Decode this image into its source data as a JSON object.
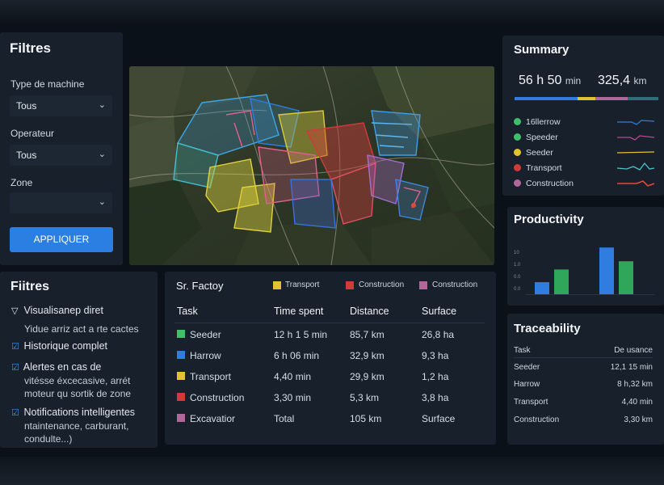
{
  "filters_panel": {
    "title": "Filtres",
    "machine_type_label": "Type de machine",
    "machine_type_value": "Tous",
    "operator_label": "Operateur",
    "operator_value": "Tous",
    "zone_label": "Zone",
    "zone_value": "",
    "apply_button": "APPLIQUER"
  },
  "features_panel": {
    "title": "Fiitres",
    "items": [
      {
        "icon": "triangle-down-icon",
        "title": "Visualisanep diret",
        "sub1": "Yidue arriz act a rte cactes",
        "sub2": ""
      },
      {
        "icon": "checkbox-icon",
        "title": "Historique complet",
        "sub1": "",
        "sub2": ""
      },
      {
        "icon": "checkbox-icon",
        "title": "Alertes en cas de",
        "sub1": "vitésse éxcecasive, arrét",
        "sub2": "moteur qu sortik de zone"
      },
      {
        "icon": "checkbox-icon",
        "title": "Notifications intelligentes",
        "sub1": "ntaintenance, carburant,",
        "sub2": "condulte...)"
      }
    ]
  },
  "table_panel": {
    "title": "Sr. Factoy",
    "legend": [
      {
        "label": "Transport",
        "color": "#e3c232"
      },
      {
        "label": "Construction",
        "color": "#d23a3a"
      },
      {
        "label": "Construction",
        "color": "#b0679a"
      }
    ],
    "headers": [
      "Task",
      "Time spent",
      "Distance",
      "Surface"
    ],
    "rows": [
      {
        "task": "Seeder",
        "color": "#3fbf6a",
        "time": "12 h 1 5 min",
        "distance": "85,7 km",
        "surface": "26,8 ha"
      },
      {
        "task": "Harrow",
        "color": "#2f7de0",
        "time": "6 h 06 min",
        "distance": "32,9 km",
        "surface": "9,3 ha"
      },
      {
        "task": "Transport",
        "color": "#e3c232",
        "time": "4,40 min",
        "distance": "29,9 km",
        "surface": "1,2 ha"
      },
      {
        "task": "Construction",
        "color": "#d23a3a",
        "time": "3,30 min",
        "distance": "5,3 km",
        "surface": "3,8 ha"
      },
      {
        "task": "Excavatior",
        "color": "#b0679a",
        "time": "Total",
        "distance": "105 km",
        "surface": "Surface"
      }
    ]
  },
  "summary_panel": {
    "title": "Summary",
    "duration": "56 h 50",
    "duration_unit": "min",
    "distance": "325,4",
    "distance_unit": "km",
    "legend": [
      {
        "label": "16llerrow",
        "color": "#3fbf6a",
        "spark": "#2f7de0"
      },
      {
        "label": "Speeder",
        "color": "#3fbf6a",
        "spark": "#c0478f"
      },
      {
        "label": "Seeder",
        "color": "#e3c232",
        "spark": "#e3c232"
      },
      {
        "label": "Transport",
        "color": "#d23a3a",
        "spark": "#4cc3c8"
      },
      {
        "label": "Construction",
        "color": "#b0679a",
        "spark": "#e04a3a"
      }
    ]
  },
  "productivity_panel": {
    "title": "Productivity",
    "y_ticks": [
      "10",
      "1.0",
      "0.0",
      "0.0"
    ]
  },
  "traceability_panel": {
    "title": "Traceability",
    "header": [
      "Task",
      "De usance"
    ],
    "rows": [
      {
        "task": "Seeder",
        "value": "12,1 15 min"
      },
      {
        "task": "Harrow",
        "value": "8 h,32 km"
      },
      {
        "task": "Transport",
        "value": "4,40 min"
      },
      {
        "task": "Construction",
        "value": "3,30 km"
      }
    ]
  },
  "chart_data": {
    "type": "bar",
    "categories": [
      "1",
      "2",
      "3",
      "4"
    ],
    "series": [
      {
        "values": [
          0.22,
          0.45,
          0,
          0
        ],
        "color": "#2f7de0"
      },
      {
        "values": [
          0,
          0.45,
          0,
          0.6
        ],
        "color": "#2fa65a"
      }
    ],
    "bars": [
      {
        "value": 0.22,
        "color": "#2f7de0"
      },
      {
        "value": 0.45,
        "color": "#2fa65a"
      },
      {
        "value": 0.85,
        "color": "#2f7de0"
      },
      {
        "value": 0.6,
        "color": "#2fa65a"
      }
    ],
    "ylim": [
      0,
      1
    ]
  }
}
